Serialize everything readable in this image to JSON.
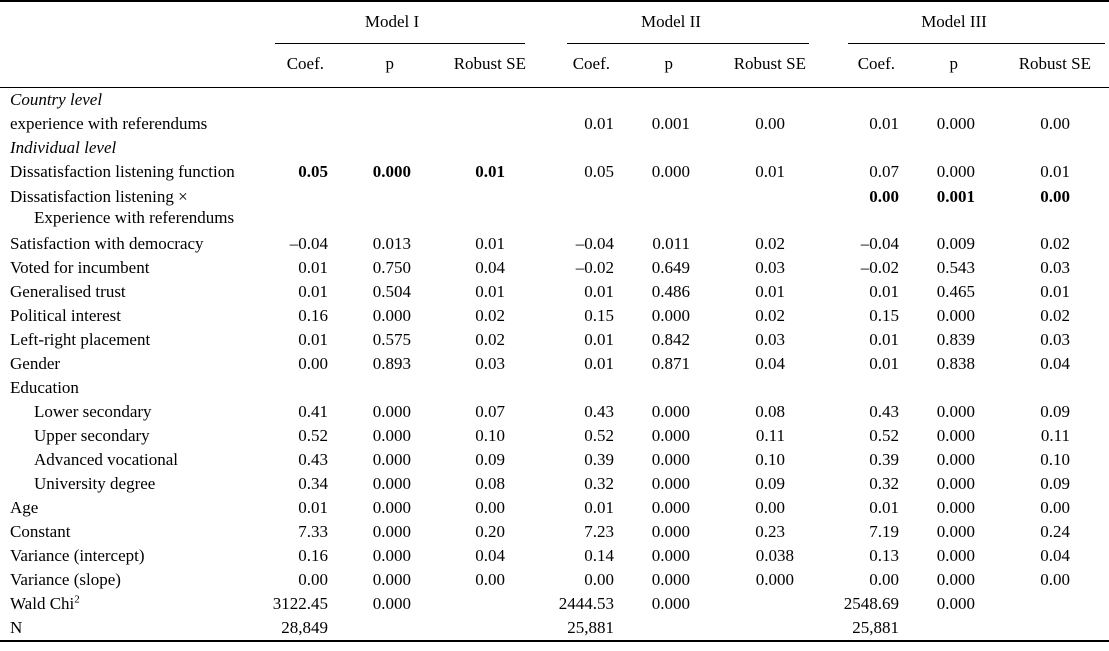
{
  "page": {
    "background": "#ffffff",
    "text_color": "#000000",
    "rule_color": "#000000"
  },
  "table": {
    "col_groups": [
      {
        "label": "Model I"
      },
      {
        "label": "Model II"
      },
      {
        "label": "Model III"
      }
    ],
    "sub_headers": [
      "Coef.",
      "p",
      "Robust SE"
    ],
    "rows": [
      {
        "label": "Country level",
        "italic": true,
        "cells": [
          "",
          "",
          "",
          "",
          "",
          "",
          "",
          "",
          ""
        ]
      },
      {
        "label": "experience with referendums",
        "cells": [
          "",
          "",
          "",
          "0.01",
          "0.001",
          "0.00",
          "0.01",
          "0.000",
          "0.00"
        ]
      },
      {
        "label": "Individual level",
        "italic": true,
        "cells": [
          "",
          "",
          "",
          "",
          "",
          "",
          "",
          "",
          ""
        ]
      },
      {
        "label": "Dissatisfaction listening function",
        "bold": [
          0,
          1,
          2
        ],
        "cells": [
          "0.05",
          "0.000",
          "0.01",
          "0.05",
          "0.000",
          "0.01",
          "0.07",
          "0.000",
          "0.01"
        ]
      },
      {
        "label": "Dissatisfaction listening ×",
        "label2": "Experience with referendums",
        "tall": true,
        "bold": [
          6,
          7,
          8
        ],
        "cells": [
          "",
          "",
          "",
          "",
          "",
          "",
          "0.00",
          "0.001",
          "0.00"
        ]
      },
      {
        "label": "Satisfaction with democracy",
        "cells": [
          "–0.04",
          "0.013",
          "0.01",
          "–0.04",
          "0.011",
          "0.02",
          "–0.04",
          "0.009",
          "0.02"
        ]
      },
      {
        "label": "Voted for incumbent",
        "cells": [
          "0.01",
          "0.750",
          "0.04",
          "–0.02",
          "0.649",
          "0.03",
          "–0.02",
          "0.543",
          "0.03"
        ]
      },
      {
        "label": "Generalised trust",
        "cells": [
          "0.01",
          "0.504",
          "0.01",
          "0.01",
          "0.486",
          "0.01",
          "0.01",
          "0.465",
          "0.01"
        ]
      },
      {
        "label": "Political interest",
        "cells": [
          "0.16",
          "0.000",
          "0.02",
          "0.15",
          "0.000",
          "0.02",
          "0.15",
          "0.000",
          "0.02"
        ]
      },
      {
        "label": "Left-right placement",
        "cells": [
          "0.01",
          "0.575",
          "0.02",
          "0.01",
          "0.842",
          "0.03",
          "0.01",
          "0.839",
          "0.03"
        ]
      },
      {
        "label": "Gender",
        "cells": [
          "0.00",
          "0.893",
          "0.03",
          "0.01",
          "0.871",
          "0.04",
          "0.01",
          "0.838",
          "0.04"
        ]
      },
      {
        "label": "Education",
        "cells": [
          "",
          "",
          "",
          "",
          "",
          "",
          "",
          "",
          ""
        ]
      },
      {
        "label": "Lower secondary",
        "indent": true,
        "cells": [
          "0.41",
          "0.000",
          "0.07",
          "0.43",
          "0.000",
          "0.08",
          "0.43",
          "0.000",
          "0.09"
        ]
      },
      {
        "label": "Upper secondary",
        "indent": true,
        "cells": [
          "0.52",
          "0.000",
          "0.10",
          "0.52",
          "0.000",
          "0.11",
          "0.52",
          "0.000",
          "0.11"
        ]
      },
      {
        "label": "Advanced vocational",
        "indent": true,
        "cells": [
          "0.43",
          "0.000",
          "0.09",
          "0.39",
          "0.000",
          "0.10",
          "0.39",
          "0.000",
          "0.10"
        ]
      },
      {
        "label": "University degree",
        "indent": true,
        "cells": [
          "0.34",
          "0.000",
          "0.08",
          "0.32",
          "0.000",
          "0.09",
          "0.32",
          "0.000",
          "0.09"
        ]
      },
      {
        "label": "Age",
        "cells": [
          "0.01",
          "0.000",
          "0.00",
          "0.01",
          "0.000",
          "0.00",
          "0.01",
          "0.000",
          "0.00"
        ]
      },
      {
        "label": "Constant",
        "cells": [
          "7.33",
          "0.000",
          "0.20",
          "7.23",
          "0.000",
          "0.23",
          "7.19",
          "0.000",
          "0.24"
        ]
      },
      {
        "label": "Variance (intercept)",
        "cells": [
          "0.16",
          "0.000",
          "0.04",
          "0.14",
          "0.000",
          "0.038",
          "0.13",
          "0.000",
          "0.04"
        ]
      },
      {
        "label": "Variance (slope)",
        "cells": [
          "0.00",
          "0.000",
          "0.00",
          "0.00",
          "0.000",
          "0.000",
          "0.00",
          "0.000",
          "0.00"
        ]
      },
      {
        "label": "Wald Chi",
        "label_sup": "2",
        "cells": [
          "3122.45",
          "0.000",
          "",
          "2444.53",
          "0.000",
          "",
          "2548.69",
          "0.000",
          ""
        ]
      },
      {
        "label": "N",
        "cells": [
          "28,849",
          "",
          "",
          "25,881",
          "",
          "",
          "25,881",
          "",
          ""
        ]
      }
    ]
  }
}
